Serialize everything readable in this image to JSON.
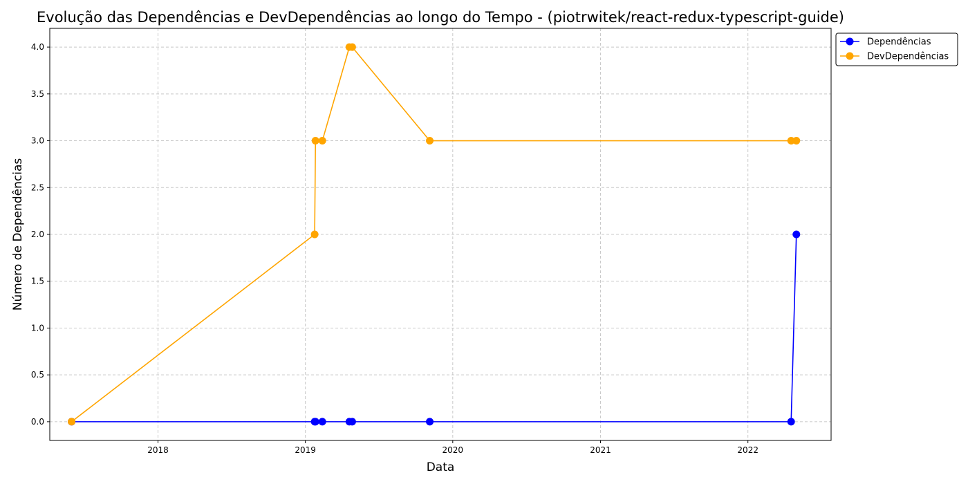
{
  "chart_data": {
    "type": "line",
    "title": "Evolução das Dependências e DevDependências ao longo do Tempo - (piotrwitek/react-redux-typescript-guide)",
    "xlabel": "Data",
    "ylabel": "Número de Dependências",
    "x_axis_type": "date",
    "xlim": [
      "2017-04-08",
      "2022-07-26"
    ],
    "ylim": [
      -0.2,
      4.2
    ],
    "x_ticks": [
      {
        "value": "2018-01-01",
        "label": "2018"
      },
      {
        "value": "2019-01-01",
        "label": "2019"
      },
      {
        "value": "2020-01-01",
        "label": "2020"
      },
      {
        "value": "2021-01-01",
        "label": "2021"
      },
      {
        "value": "2022-01-01",
        "label": "2022"
      }
    ],
    "y_ticks": [
      {
        "value": 0.0,
        "label": "0.0"
      },
      {
        "value": 0.5,
        "label": "0.5"
      },
      {
        "value": 1.0,
        "label": "1.0"
      },
      {
        "value": 1.5,
        "label": "1.5"
      },
      {
        "value": 2.0,
        "label": "2.0"
      },
      {
        "value": 2.5,
        "label": "2.5"
      },
      {
        "value": 3.0,
        "label": "3.0"
      },
      {
        "value": 3.5,
        "label": "3.5"
      },
      {
        "value": 4.0,
        "label": "4.0"
      }
    ],
    "grid": true,
    "legend_position": "outside-top-right",
    "series": [
      {
        "name": "Dependências",
        "color": "#0000ff",
        "points": [
          {
            "x": "2017-06-01",
            "y": 0
          },
          {
            "x": "2019-01-24",
            "y": 0
          },
          {
            "x": "2019-01-26",
            "y": 0
          },
          {
            "x": "2019-02-12",
            "y": 0
          },
          {
            "x": "2019-04-20",
            "y": 0
          },
          {
            "x": "2019-04-27",
            "y": 0
          },
          {
            "x": "2019-11-05",
            "y": 0
          },
          {
            "x": "2022-04-18",
            "y": 0
          },
          {
            "x": "2022-05-01",
            "y": 2
          }
        ]
      },
      {
        "name": "DevDependências",
        "color": "#ffa500",
        "points": [
          {
            "x": "2017-06-01",
            "y": 0
          },
          {
            "x": "2019-01-24",
            "y": 2
          },
          {
            "x": "2019-01-26",
            "y": 3
          },
          {
            "x": "2019-02-12",
            "y": 3
          },
          {
            "x": "2019-04-20",
            "y": 4
          },
          {
            "x": "2019-04-27",
            "y": 4
          },
          {
            "x": "2019-11-05",
            "y": 3
          },
          {
            "x": "2022-04-18",
            "y": 3
          },
          {
            "x": "2022-05-01",
            "y": 3
          }
        ]
      }
    ]
  }
}
